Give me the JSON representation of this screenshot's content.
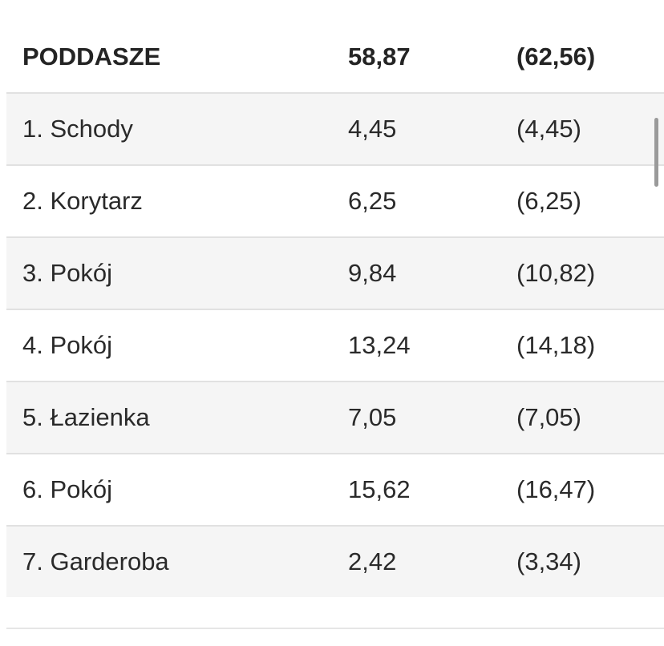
{
  "table": {
    "header": {
      "name": "PODDASZE",
      "area": "58,87",
      "usable": "(62,56)"
    },
    "rows": [
      {
        "name": "1. Schody",
        "area": "4,45",
        "usable": "(4,45)"
      },
      {
        "name": "2. Korytarz",
        "area": "6,25",
        "usable": "(6,25)"
      },
      {
        "name": "3. Pokój",
        "area": "9,84",
        "usable": "(10,82)"
      },
      {
        "name": "4. Pokój",
        "area": "13,24",
        "usable": "(14,18)"
      },
      {
        "name": "5. Łazienka",
        "area": "7,05",
        "usable": "(7,05)"
      },
      {
        "name": "6. Pokój",
        "area": "15,62",
        "usable": "(16,47)"
      },
      {
        "name": "7. Garderoba",
        "area": "2,42",
        "usable": "(3,34)"
      }
    ]
  }
}
